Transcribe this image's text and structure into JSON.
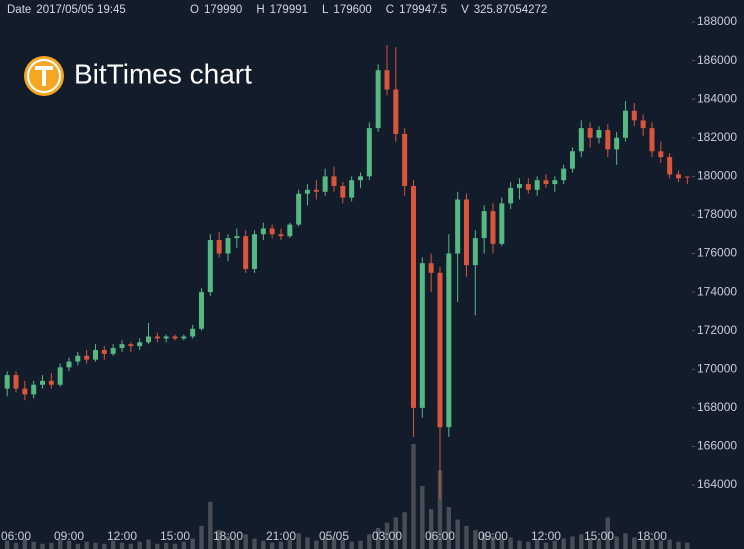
{
  "header": {
    "date_label": "Date",
    "date": "2017/05/05 19:45",
    "items": [
      {
        "label": "O",
        "value": 179990
      },
      {
        "label": "H",
        "value": 179991
      },
      {
        "label": "L",
        "value": 179600
      },
      {
        "label": "C",
        "value": 179947.5
      },
      {
        "label": "V",
        "value": 325.87054272
      }
    ]
  },
  "chart_data": {
    "type": "candlestick",
    "title": "BitTimes chart",
    "categories": [
      null,
      "06:00",
      null,
      null,
      null,
      null,
      null,
      "09:00",
      null,
      null,
      null,
      null,
      null,
      "12:00",
      null,
      null,
      null,
      null,
      null,
      "15:00",
      null,
      null,
      null,
      null,
      null,
      "18:00",
      null,
      null,
      null,
      null,
      null,
      "21:00",
      null,
      null,
      null,
      null,
      null,
      "05/05",
      null,
      null,
      null,
      null,
      null,
      "03:00",
      null,
      null,
      null,
      null,
      null,
      "06:00",
      null,
      null,
      null,
      null,
      null,
      "09:00",
      null,
      null,
      null,
      null,
      null,
      "12:00",
      null,
      null,
      null,
      null,
      null,
      "15:00",
      null,
      null,
      null,
      null,
      null,
      "18:00",
      null,
      null,
      null,
      null
    ],
    "open": [
      169000,
      169700,
      169000,
      168700,
      169200,
      169400,
      169200,
      170100,
      170400,
      170700,
      170500,
      171000,
      170800,
      171100,
      171300,
      171200,
      171400,
      171700,
      171600,
      171700,
      171600,
      171700,
      172100,
      174000,
      176700,
      176000,
      176800,
      176900,
      175200,
      177000,
      177300,
      177000,
      176900,
      177500,
      179100,
      179300,
      179200,
      180000,
      179500,
      178900,
      179800,
      180000,
      182500,
      185500,
      184500,
      182200,
      179500,
      168000,
      175500,
      175000,
      167000,
      176000,
      178800,
      175400,
      176800,
      178200,
      176500,
      178600,
      179400,
      179600,
      179300,
      179800,
      179600,
      179800,
      180400,
      181300,
      182500,
      182000,
      182400,
      181400,
      182000,
      183400,
      182900,
      182500,
      181300,
      181000,
      180100,
      179990
    ],
    "high": [
      169900,
      169900,
      169400,
      169400,
      169700,
      169800,
      170300,
      170600,
      170900,
      171000,
      171300,
      171200,
      171300,
      171500,
      171400,
      171600,
      172400,
      171900,
      171800,
      171800,
      171800,
      172300,
      174200,
      177000,
      177100,
      177000,
      177300,
      177200,
      177200,
      177600,
      177500,
      177300,
      177600,
      179300,
      179600,
      179800,
      180400,
      180500,
      179700,
      180000,
      180200,
      182800,
      185800,
      186800,
      186700,
      182500,
      179800,
      175800,
      176000,
      175300,
      177000,
      179200,
      179100,
      177200,
      178500,
      178600,
      178900,
      179700,
      179900,
      179900,
      180000,
      180100,
      180000,
      180600,
      181500,
      182900,
      182800,
      182600,
      182700,
      182300,
      183900,
      183800,
      183200,
      182800,
      181800,
      181200,
      180300,
      179991
    ],
    "low": [
      168600,
      168800,
      168400,
      168500,
      169000,
      169000,
      169100,
      169900,
      170200,
      170300,
      170400,
      170500,
      170700,
      170900,
      170900,
      171000,
      171300,
      171400,
      171400,
      171500,
      171500,
      171600,
      172000,
      173800,
      175800,
      175600,
      176300,
      175000,
      175000,
      176700,
      176800,
      176700,
      176800,
      177400,
      178500,
      178800,
      179000,
      179200,
      178600,
      178700,
      179400,
      179800,
      182300,
      184200,
      181800,
      179000,
      166500,
      167500,
      174000,
      163300,
      166500,
      173500,
      174800,
      172800,
      176000,
      176000,
      176400,
      178300,
      178800,
      179100,
      179000,
      179400,
      179200,
      179600,
      180200,
      181000,
      181500,
      181700,
      181000,
      180600,
      181800,
      182600,
      182100,
      181000,
      180700,
      179900,
      179700,
      179600
    ],
    "close": [
      169700,
      169000,
      168700,
      169200,
      169400,
      169200,
      170100,
      170400,
      170700,
      170500,
      171000,
      170800,
      171100,
      171300,
      171200,
      171400,
      171700,
      171600,
      171700,
      171600,
      171700,
      172100,
      174000,
      176700,
      176000,
      176800,
      176900,
      175200,
      177000,
      177300,
      177000,
      176900,
      177500,
      179100,
      179300,
      179200,
      180000,
      179500,
      178900,
      179800,
      180000,
      182500,
      185500,
      184500,
      182200,
      179500,
      168000,
      175500,
      175000,
      167000,
      176000,
      178800,
      175400,
      176800,
      178200,
      176500,
      178600,
      179400,
      179600,
      179300,
      179800,
      179600,
      179800,
      180400,
      181300,
      182500,
      182000,
      182400,
      181400,
      182000,
      183400,
      182900,
      182500,
      181300,
      181000,
      180100,
      179900,
      179947.5
    ],
    "volume": [
      8,
      6,
      10,
      7,
      5,
      6,
      9,
      8,
      5,
      7,
      6,
      5,
      8,
      6,
      5,
      7,
      9,
      5,
      6,
      5,
      7,
      10,
      22,
      45,
      18,
      12,
      9,
      14,
      10,
      8,
      6,
      7,
      9,
      15,
      11,
      8,
      12,
      10,
      9,
      7,
      8,
      14,
      20,
      25,
      30,
      35,
      100,
      60,
      38,
      75,
      40,
      28,
      22,
      18,
      15,
      12,
      10,
      11,
      8,
      7,
      9,
      6,
      8,
      10,
      12,
      14,
      10,
      9,
      30,
      12,
      15,
      11,
      9,
      10,
      8,
      9,
      7,
      6
    ],
    "up_color": "#56b883",
    "down_color": "#d9553b",
    "volume_color": "#4a4d55",
    "ylim": [
      161930,
      189140
    ],
    "yticks": [
      164000,
      166000,
      168000,
      170000,
      172000,
      174000,
      176000,
      178000,
      180000,
      182000,
      184000,
      186000,
      188000
    ]
  }
}
